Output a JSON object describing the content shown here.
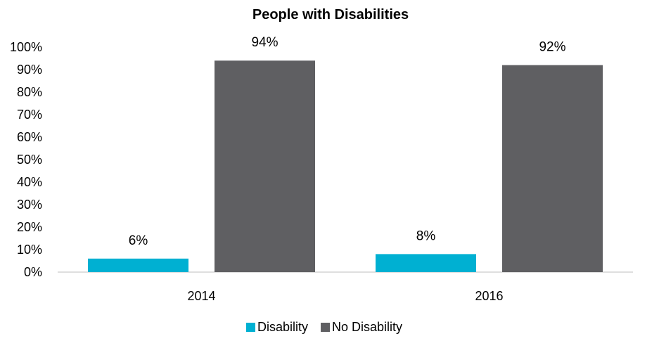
{
  "chart_data": {
    "type": "bar",
    "title": "People with Disabilities",
    "categories": [
      "2014",
      "2016"
    ],
    "series": [
      {
        "name": "Disability",
        "values": [
          6,
          8
        ],
        "color": "#00b0d2"
      },
      {
        "name": "No Disability",
        "values": [
          94,
          92
        ],
        "color": "#5f5f62"
      }
    ],
    "data_labels": [
      [
        "6%",
        "8%"
      ],
      [
        "94%",
        "92%"
      ]
    ],
    "y_ticks": [
      "0%",
      "10%",
      "20%",
      "30%",
      "40%",
      "50%",
      "60%",
      "70%",
      "80%",
      "90%",
      "100%"
    ],
    "ylim": [
      0,
      100
    ],
    "grid": false,
    "legend_position": "bottom"
  }
}
